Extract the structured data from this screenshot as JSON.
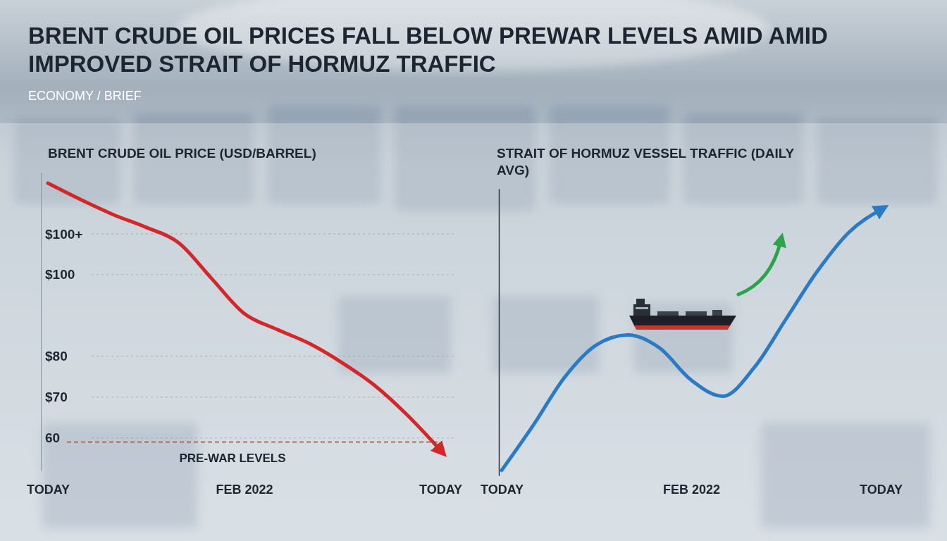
{
  "header": {
    "title": "BRENT CRUDE OIL PRICES FALL BELOW PREWAR LEVELS AMID AMID IMPROVED STRAIT OF HORMUZ TRAFFIC",
    "subtitle": "ECONOMY / BRIEF"
  },
  "chart_data": [
    {
      "type": "line",
      "title": "BRENT CRUDE OIL PRICE (USD/BARREL)",
      "categories": [
        "TODAY",
        null,
        null,
        null,
        null,
        null,
        "FEB 2022",
        null,
        null,
        null,
        null,
        null,
        "TODAY"
      ],
      "values": [
        122.4,
        118.4,
        114.7,
        111.6,
        107.8,
        99.1,
        90.5,
        86.6,
        83.1,
        78.4,
        72.8,
        65.5,
        57
      ],
      "color": "#d2282a",
      "marker": "arrow",
      "ylim": [
        52,
        125
      ],
      "yticks": [
        {
          "value": 110,
          "label": "$100+"
        },
        {
          "value": 100,
          "label": "$100"
        },
        {
          "value": 80,
          "label": "$80"
        },
        {
          "value": 70,
          "label": "$70"
        },
        60
      ],
      "grid": true,
      "annotations": [
        {
          "text": "PRE-WAR LEVELS",
          "value": 59
        }
      ]
    },
    {
      "type": "line",
      "title": "STRAIT OF HORMUZ VESSEL TRAFFIC (DAILY AVG)",
      "categories": [
        "TODAY",
        null,
        null,
        null,
        null,
        null,
        "FEB 2022",
        null,
        null,
        null,
        null,
        null,
        "TODAY"
      ],
      "values": [
        0,
        17.3,
        35.8,
        48.1,
        51.9,
        46.9,
        34.6,
        28.4,
        39.5,
        58,
        76.5,
        91.4,
        100
      ],
      "color": "#2a7bc3",
      "marker": "arrow",
      "ylim": [
        -2,
        108
      ],
      "grid": false,
      "tick_labels": "x"
    }
  ]
}
